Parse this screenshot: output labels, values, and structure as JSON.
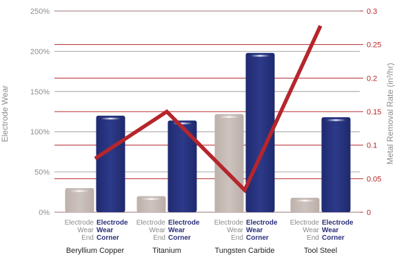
{
  "chart_data": {
    "type": "bar",
    "categories": [
      "Beryllium Copper",
      "Titanium",
      "Tungsten Carbide",
      "Tool Steel"
    ],
    "sub_labels": {
      "end": [
        "Electrode",
        "Wear",
        "End"
      ],
      "corner": [
        "Electrode",
        "Wear",
        "Corner"
      ]
    },
    "series": [
      {
        "values": [
          30,
          20,
          122,
          18
        ],
        "color": "#c7bcb7",
        "axis": "left"
      },
      {
        "values": [
          120,
          114,
          198,
          118
        ],
        "color": "#27337f",
        "axis": "left"
      },
      {
        "type": "line",
        "values": [
          0.08,
          0.15,
          0.033,
          0.278
        ],
        "color": "#b5262c",
        "axis": "right"
      }
    ],
    "y_left": {
      "label": "Electrode Wear",
      "ylim": [
        0,
        250
      ],
      "ticks": [
        0,
        50,
        100,
        150,
        200,
        250
      ],
      "tick_labels": [
        "0%",
        "50%",
        "100%",
        "150%",
        "200%",
        "250%"
      ]
    },
    "y_right": {
      "label": "Metal Removal Rate (in³/hr)",
      "ylim": [
        0,
        0.3
      ],
      "ticks": [
        0,
        0.05,
        0.1,
        0.15,
        0.2,
        0.25,
        0.3
      ],
      "tick_labels": [
        "0",
        "0.05",
        "0.1",
        "0.15",
        "0.2",
        "0.25",
        "0.3"
      ]
    },
    "grid": true
  }
}
